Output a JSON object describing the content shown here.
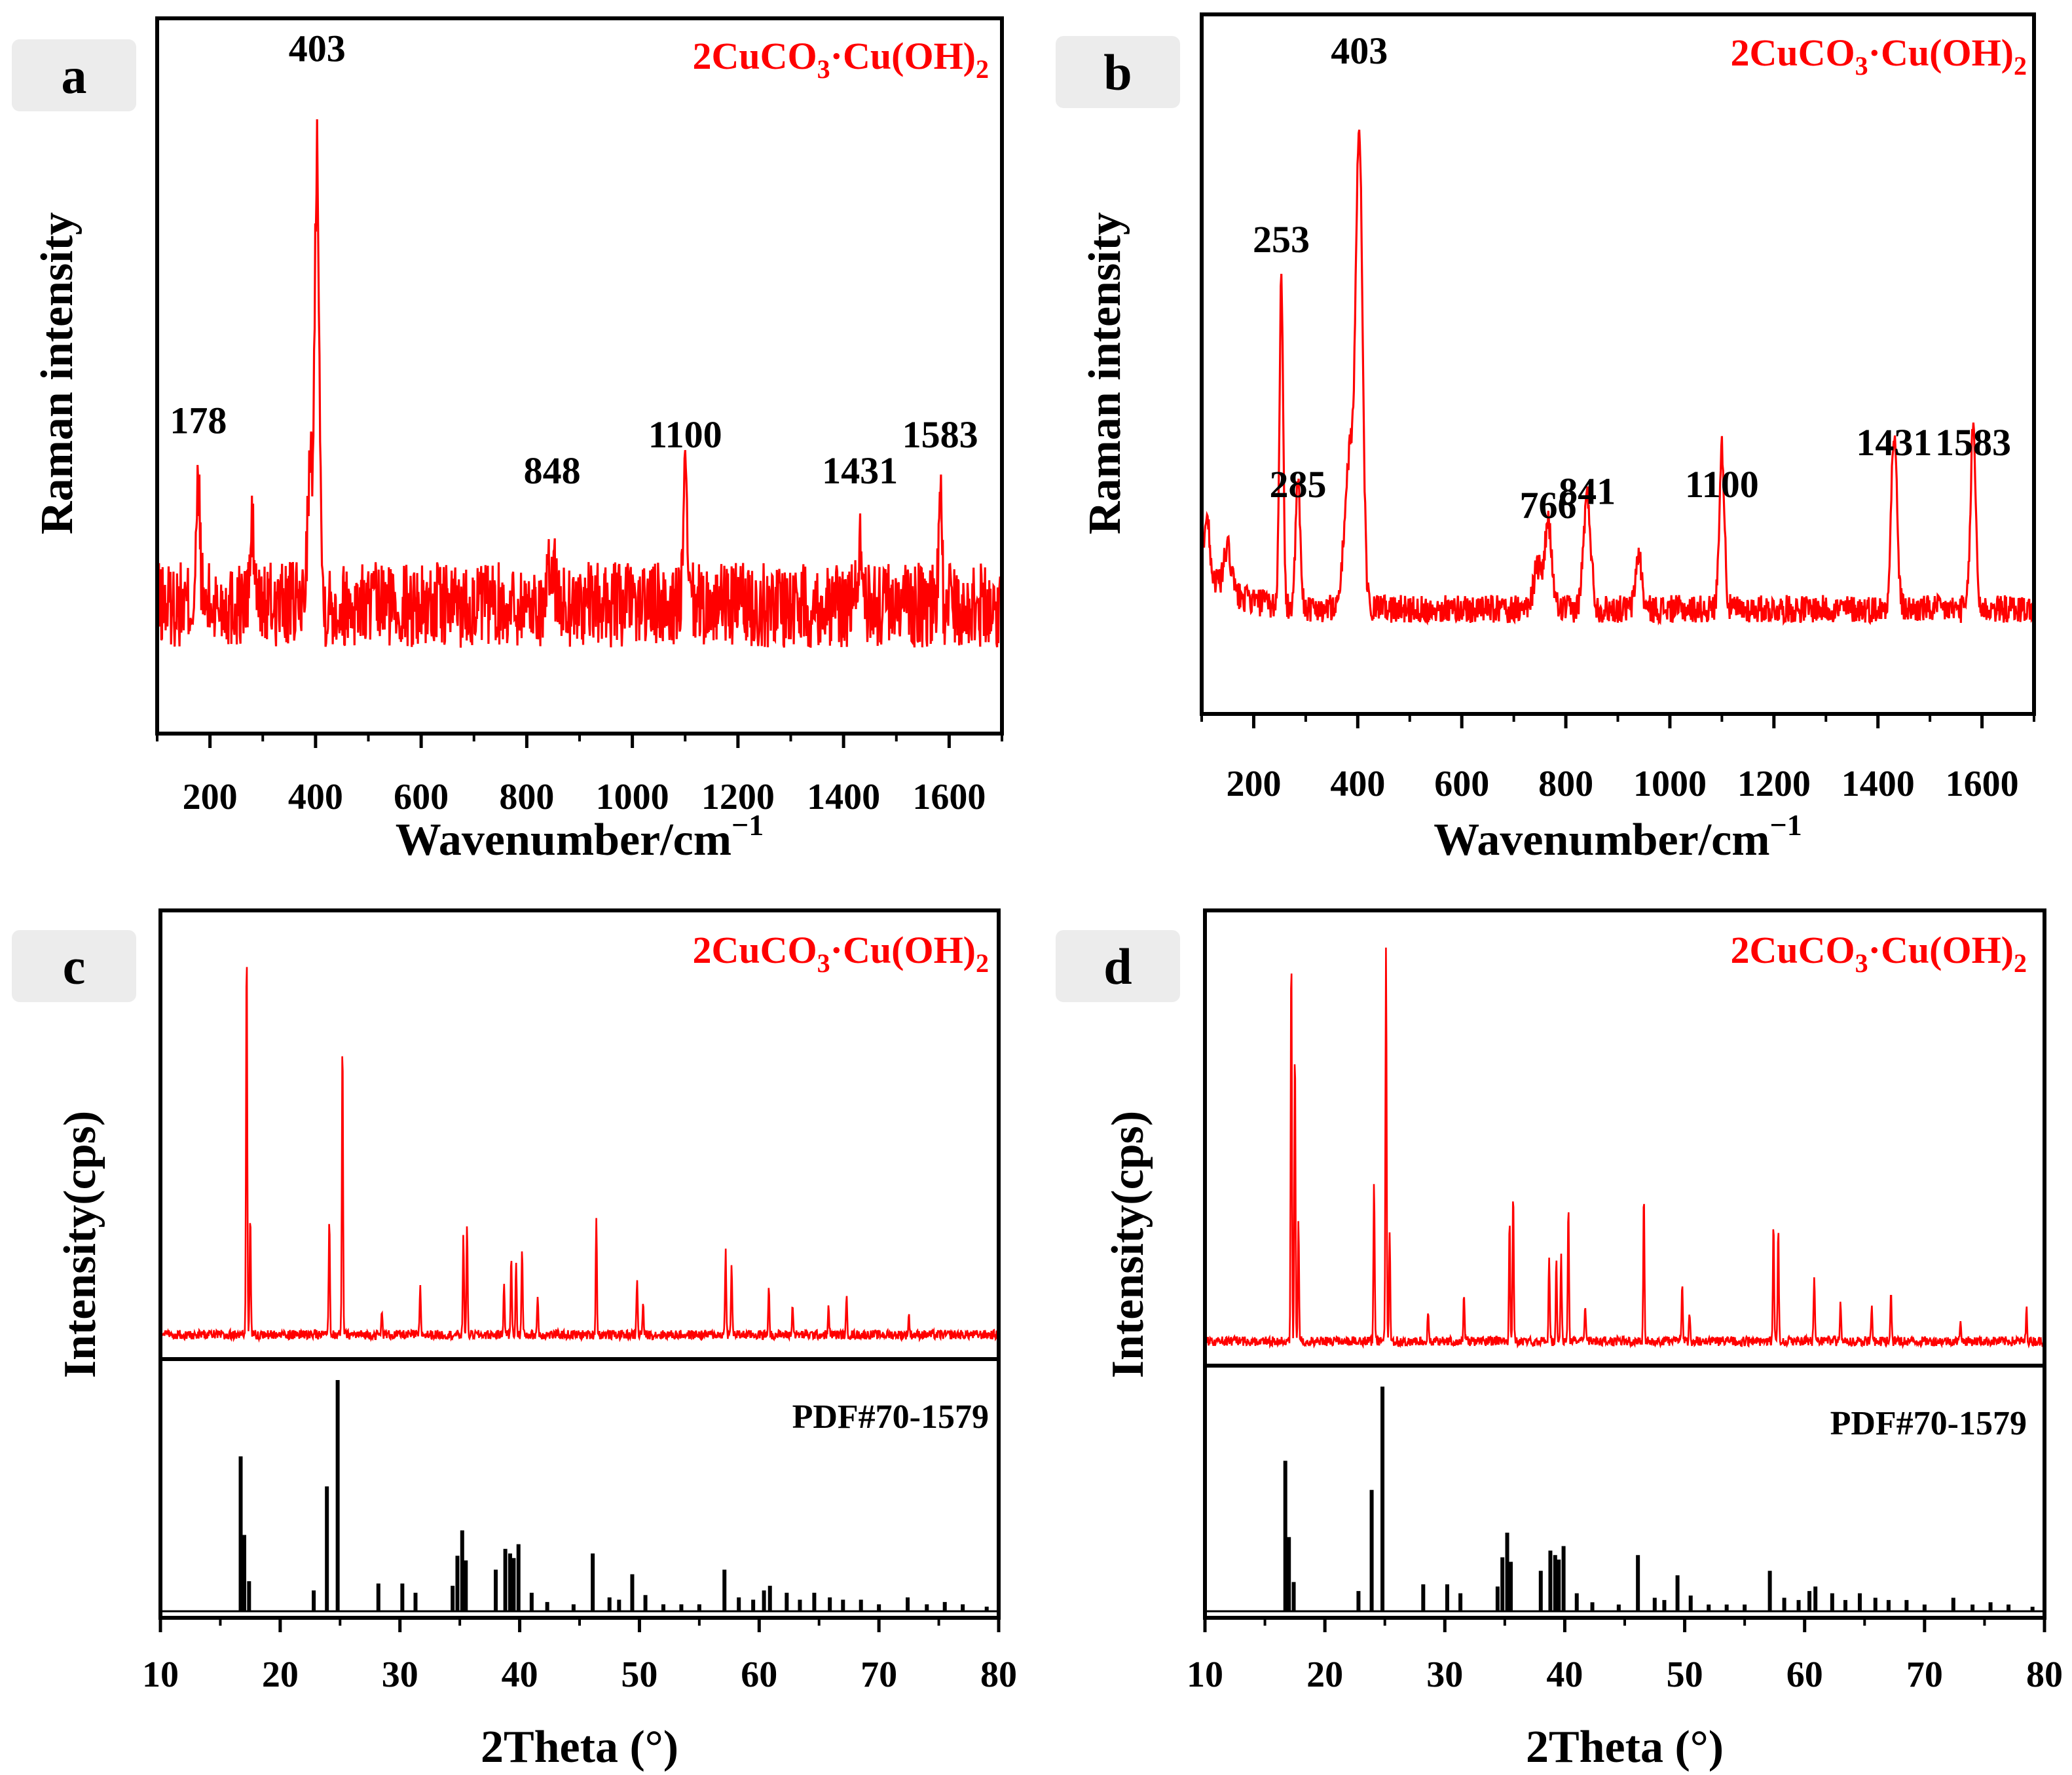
{
  "colors": {
    "sample": "#ff0000",
    "reference": "#000000",
    "label_bg": "#ececec"
  },
  "chart_data": [
    {
      "id": "a",
      "type": "line",
      "panel_label": "a",
      "sample_label": "2CuCO3·Cu(OH)2",
      "sample_label_parts": [
        "2CuCO",
        "3",
        "·Cu(OH)",
        "2"
      ],
      "xlabel": "Wavenumber/cm",
      "xlabel_sup": "−1",
      "ylabel": "Raman intensity",
      "xlim": [
        100,
        1700
      ],
      "ylim": [
        0,
        100
      ],
      "xticks": [
        200,
        400,
        600,
        800,
        1000,
        1200,
        1400,
        1600
      ],
      "xtick_labels": [
        "200",
        "400",
        "600",
        "800",
        "1000",
        "1200",
        "1400",
        "1600"
      ],
      "baseline": 18,
      "noise": 6,
      "peaks": [
        {
          "x": 178,
          "h": 16,
          "w": 5
        },
        {
          "x": 280,
          "h": 10,
          "w": 6
        },
        {
          "x": 390,
          "h": 18,
          "w": 8
        },
        {
          "x": 403,
          "h": 63,
          "w": 6
        },
        {
          "x": 848,
          "h": 6,
          "w": 8
        },
        {
          "x": 1100,
          "h": 17,
          "w": 5
        },
        {
          "x": 1431,
          "h": 8,
          "w": 7
        },
        {
          "x": 1583,
          "h": 15,
          "w": 4
        }
      ],
      "peak_labels": [
        {
          "x": 178,
          "y": 42,
          "text": "178"
        },
        {
          "x": 403,
          "y": 94,
          "text": "403"
        },
        {
          "x": 848,
          "y": 35,
          "text": "848"
        },
        {
          "x": 1100,
          "y": 40,
          "text": "1100"
        },
        {
          "x": 1431,
          "y": 35,
          "text": "1431"
        },
        {
          "x": 1583,
          "y": 40,
          "text": "1583"
        }
      ]
    },
    {
      "id": "b",
      "type": "line",
      "panel_label": "b",
      "sample_label": "2CuCO3·Cu(OH)2",
      "sample_label_parts": [
        "2CuCO",
        "3",
        "·Cu(OH)",
        "2"
      ],
      "xlabel": "Wavenumber/cm",
      "xlabel_sup": "−1",
      "ylabel": "Raman intensity",
      "xlim": [
        100,
        1700
      ],
      "ylim": [
        0,
        100
      ],
      "xticks": [
        200,
        400,
        600,
        800,
        1000,
        1200,
        1400,
        1600
      ],
      "xtick_labels": [
        "200",
        "400",
        "600",
        "800",
        "1000",
        "1200",
        "1400",
        "1600"
      ],
      "baseline": 15,
      "noise": 2,
      "peaks": [
        {
          "x": 110,
          "h": 8,
          "w": 8
        },
        {
          "x": 150,
          "h": 6,
          "w": 10
        },
        {
          "x": 253,
          "h": 46,
          "w": 5
        },
        {
          "x": 285,
          "h": 18,
          "w": 6
        },
        {
          "x": 385,
          "h": 22,
          "w": 14
        },
        {
          "x": 403,
          "h": 64,
          "w": 9
        },
        {
          "x": 745,
          "h": 6,
          "w": 10
        },
        {
          "x": 766,
          "h": 12,
          "w": 10
        },
        {
          "x": 841,
          "h": 16,
          "w": 10
        },
        {
          "x": 940,
          "h": 8,
          "w": 8
        },
        {
          "x": 1100,
          "h": 23,
          "w": 7
        },
        {
          "x": 1431,
          "h": 25,
          "w": 8
        },
        {
          "x": 1583,
          "h": 26,
          "w": 7
        }
      ],
      "peak_labels": [
        {
          "x": 253,
          "y": 66,
          "text": "253"
        },
        {
          "x": 285,
          "y": 31,
          "text": "285"
        },
        {
          "x": 403,
          "y": 93,
          "text": "403"
        },
        {
          "x": 766,
          "y": 28,
          "text": "766"
        },
        {
          "x": 841,
          "y": 30,
          "text": "841"
        },
        {
          "x": 1100,
          "y": 31,
          "text": "1100"
        },
        {
          "x": 1431,
          "y": 37,
          "text": "1431"
        },
        {
          "x": 1583,
          "y": 37,
          "text": "1583"
        }
      ]
    },
    {
      "id": "c",
      "type": "line",
      "panel_label": "c",
      "sample_label": "2CuCO3·Cu(OH)2",
      "sample_label_parts": [
        "2CuCO",
        "3",
        "·Cu(OH)",
        "2"
      ],
      "reference_label": "PDF#70-1579",
      "xlabel": "2Theta (°)",
      "ylabel": "Intensity(cps)",
      "xlim": [
        10,
        80
      ],
      "xticks": [
        10,
        20,
        30,
        40,
        50,
        60,
        70,
        80
      ],
      "xtick_labels": [
        "10",
        "20",
        "30",
        "40",
        "50",
        "60",
        "70",
        "80"
      ],
      "sample_peaks": [
        {
          "x": 17.2,
          "h": 100
        },
        {
          "x": 17.5,
          "h": 30
        },
        {
          "x": 24.1,
          "h": 30
        },
        {
          "x": 25.2,
          "h": 75
        },
        {
          "x": 28.5,
          "h": 6
        },
        {
          "x": 31.7,
          "h": 12
        },
        {
          "x": 35.3,
          "h": 25
        },
        {
          "x": 35.6,
          "h": 28
        },
        {
          "x": 38.7,
          "h": 14
        },
        {
          "x": 39.3,
          "h": 20
        },
        {
          "x": 39.7,
          "h": 18
        },
        {
          "x": 40.2,
          "h": 22
        },
        {
          "x": 41.5,
          "h": 10
        },
        {
          "x": 46.4,
          "h": 30
        },
        {
          "x": 49.8,
          "h": 14
        },
        {
          "x": 50.3,
          "h": 8
        },
        {
          "x": 57.2,
          "h": 22
        },
        {
          "x": 57.7,
          "h": 18
        },
        {
          "x": 60.8,
          "h": 12
        },
        {
          "x": 62.8,
          "h": 8
        },
        {
          "x": 65.8,
          "h": 7
        },
        {
          "x": 67.3,
          "h": 9
        },
        {
          "x": 72.5,
          "h": 5
        }
      ],
      "reference_peaks": [
        {
          "x": 16.7,
          "h": 67
        },
        {
          "x": 17.0,
          "h": 33
        },
        {
          "x": 17.4,
          "h": 13
        },
        {
          "x": 22.8,
          "h": 9
        },
        {
          "x": 23.9,
          "h": 54
        },
        {
          "x": 24.8,
          "h": 100
        },
        {
          "x": 28.2,
          "h": 12
        },
        {
          "x": 30.2,
          "h": 12
        },
        {
          "x": 31.3,
          "h": 8
        },
        {
          "x": 34.4,
          "h": 11
        },
        {
          "x": 34.8,
          "h": 24
        },
        {
          "x": 35.2,
          "h": 35
        },
        {
          "x": 35.5,
          "h": 22
        },
        {
          "x": 38.0,
          "h": 18
        },
        {
          "x": 38.8,
          "h": 27
        },
        {
          "x": 39.2,
          "h": 25
        },
        {
          "x": 39.5,
          "h": 23
        },
        {
          "x": 39.9,
          "h": 29
        },
        {
          "x": 41.0,
          "h": 8
        },
        {
          "x": 42.3,
          "h": 4
        },
        {
          "x": 44.5,
          "h": 3
        },
        {
          "x": 46.1,
          "h": 25
        },
        {
          "x": 47.5,
          "h": 6
        },
        {
          "x": 48.3,
          "h": 5
        },
        {
          "x": 49.4,
          "h": 16
        },
        {
          "x": 50.5,
          "h": 7
        },
        {
          "x": 52.0,
          "h": 3
        },
        {
          "x": 53.5,
          "h": 3
        },
        {
          "x": 55.0,
          "h": 3
        },
        {
          "x": 57.1,
          "h": 18
        },
        {
          "x": 58.3,
          "h": 6
        },
        {
          "x": 59.5,
          "h": 5
        },
        {
          "x": 60.4,
          "h": 9
        },
        {
          "x": 60.9,
          "h": 11
        },
        {
          "x": 62.3,
          "h": 8
        },
        {
          "x": 63.4,
          "h": 5
        },
        {
          "x": 64.6,
          "h": 8
        },
        {
          "x": 65.9,
          "h": 6
        },
        {
          "x": 67.0,
          "h": 5
        },
        {
          "x": 68.5,
          "h": 5
        },
        {
          "x": 70.0,
          "h": 3
        },
        {
          "x": 72.4,
          "h": 6
        },
        {
          "x": 74.0,
          "h": 3
        },
        {
          "x": 75.5,
          "h": 4
        },
        {
          "x": 77.0,
          "h": 3
        },
        {
          "x": 79.0,
          "h": 2
        }
      ]
    },
    {
      "id": "d",
      "type": "line",
      "panel_label": "d",
      "sample_label": "2CuCO3·Cu(OH)2",
      "sample_label_parts": [
        "2CuCO",
        "3",
        "·Cu(OH)",
        "2"
      ],
      "reference_label": "PDF#70-1579",
      "xlabel": "2Theta (°)",
      "ylabel": "Intensity(cps)",
      "xlim": [
        10,
        80
      ],
      "xticks": [
        10,
        20,
        30,
        40,
        50,
        60,
        70,
        80
      ],
      "xtick_labels": [
        "10",
        "20",
        "30",
        "40",
        "50",
        "60",
        "70",
        "80"
      ],
      "sample_peaks": [
        {
          "x": 17.2,
          "h": 100
        },
        {
          "x": 17.5,
          "h": 75
        },
        {
          "x": 17.8,
          "h": 30
        },
        {
          "x": 24.1,
          "h": 40
        },
        {
          "x": 25.1,
          "h": 100
        },
        {
          "x": 25.4,
          "h": 28
        },
        {
          "x": 28.6,
          "h": 7
        },
        {
          "x": 31.6,
          "h": 12
        },
        {
          "x": 35.4,
          "h": 30
        },
        {
          "x": 35.7,
          "h": 38
        },
        {
          "x": 38.7,
          "h": 22
        },
        {
          "x": 39.3,
          "h": 20
        },
        {
          "x": 39.7,
          "h": 22
        },
        {
          "x": 40.3,
          "h": 34
        },
        {
          "x": 41.7,
          "h": 10
        },
        {
          "x": 46.6,
          "h": 38
        },
        {
          "x": 49.8,
          "h": 14
        },
        {
          "x": 50.4,
          "h": 8
        },
        {
          "x": 57.4,
          "h": 30
        },
        {
          "x": 57.8,
          "h": 28
        },
        {
          "x": 60.8,
          "h": 16
        },
        {
          "x": 63.0,
          "h": 10
        },
        {
          "x": 65.6,
          "h": 10
        },
        {
          "x": 67.2,
          "h": 12
        },
        {
          "x": 73.0,
          "h": 6
        },
        {
          "x": 78.5,
          "h": 8
        }
      ],
      "reference_peaks": [
        {
          "x": 16.7,
          "h": 67
        },
        {
          "x": 17.0,
          "h": 33
        },
        {
          "x": 17.4,
          "h": 13
        },
        {
          "x": 22.8,
          "h": 9
        },
        {
          "x": 23.9,
          "h": 54
        },
        {
          "x": 24.8,
          "h": 100
        },
        {
          "x": 28.2,
          "h": 12
        },
        {
          "x": 30.2,
          "h": 12
        },
        {
          "x": 31.3,
          "h": 8
        },
        {
          "x": 34.4,
          "h": 11
        },
        {
          "x": 34.8,
          "h": 24
        },
        {
          "x": 35.2,
          "h": 35
        },
        {
          "x": 35.5,
          "h": 22
        },
        {
          "x": 38.0,
          "h": 18
        },
        {
          "x": 38.8,
          "h": 27
        },
        {
          "x": 39.2,
          "h": 25
        },
        {
          "x": 39.5,
          "h": 23
        },
        {
          "x": 39.9,
          "h": 29
        },
        {
          "x": 41.0,
          "h": 8
        },
        {
          "x": 42.3,
          "h": 4
        },
        {
          "x": 44.5,
          "h": 3
        },
        {
          "x": 46.1,
          "h": 25
        },
        {
          "x": 47.5,
          "h": 6
        },
        {
          "x": 48.3,
          "h": 5
        },
        {
          "x": 49.4,
          "h": 16
        },
        {
          "x": 50.5,
          "h": 7
        },
        {
          "x": 52.0,
          "h": 3
        },
        {
          "x": 53.5,
          "h": 3
        },
        {
          "x": 55.0,
          "h": 3
        },
        {
          "x": 57.1,
          "h": 18
        },
        {
          "x": 58.3,
          "h": 6
        },
        {
          "x": 59.5,
          "h": 5
        },
        {
          "x": 60.4,
          "h": 9
        },
        {
          "x": 60.9,
          "h": 11
        },
        {
          "x": 62.3,
          "h": 8
        },
        {
          "x": 63.4,
          "h": 5
        },
        {
          "x": 64.6,
          "h": 8
        },
        {
          "x": 65.9,
          "h": 6
        },
        {
          "x": 67.0,
          "h": 5
        },
        {
          "x": 68.5,
          "h": 5
        },
        {
          "x": 70.0,
          "h": 3
        },
        {
          "x": 72.4,
          "h": 6
        },
        {
          "x": 74.0,
          "h": 3
        },
        {
          "x": 75.5,
          "h": 4
        },
        {
          "x": 77.0,
          "h": 3
        },
        {
          "x": 79.0,
          "h": 2
        }
      ]
    }
  ]
}
